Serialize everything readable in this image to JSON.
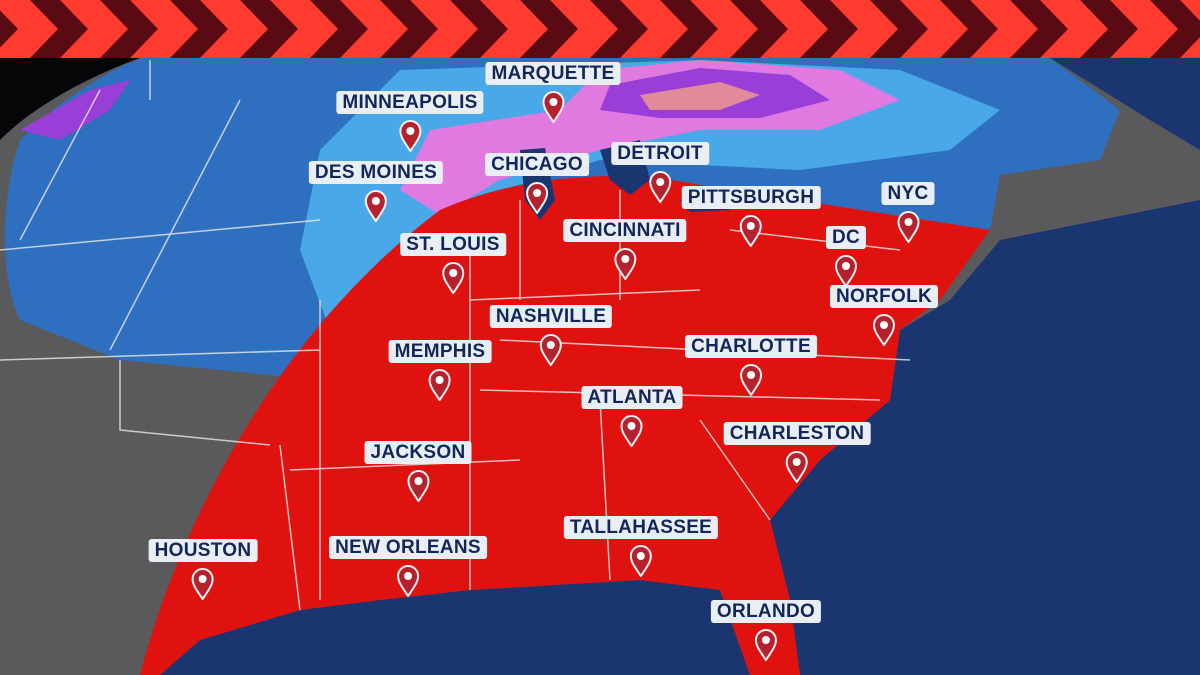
{
  "colors": {
    "banner_red": "#ff3b30",
    "banner_dark": "#5a0a12",
    "ocean": "#1b3570",
    "land": "#5a5a5c",
    "snow_light": "#48a8e8",
    "snow_dark": "#2f6fc0",
    "ice_pink": "#e07ae0",
    "ice_purple": "#9a3ed8",
    "rain_red": "#e0120f",
    "label_bg": "#e9eef4",
    "label_text": "#13265a",
    "pin": "#b5222e"
  },
  "cities": [
    {
      "name": "MARQUETTE",
      "icon": "map-pin-icon"
    },
    {
      "name": "MINNEAPOLIS",
      "icon": "map-pin-icon"
    },
    {
      "name": "DES MOINES",
      "icon": "map-pin-icon"
    },
    {
      "name": "CHICAGO",
      "icon": "map-pin-icon"
    },
    {
      "name": "DETROIT",
      "icon": "map-pin-icon"
    },
    {
      "name": "PITTSBURGH",
      "icon": "map-pin-icon"
    },
    {
      "name": "NYC",
      "icon": "map-pin-icon"
    },
    {
      "name": "ST. LOUIS",
      "icon": "map-pin-icon"
    },
    {
      "name": "CINCINNATI",
      "icon": "map-pin-icon"
    },
    {
      "name": "DC",
      "icon": "map-pin-icon"
    },
    {
      "name": "NORFOLK",
      "icon": "map-pin-icon"
    },
    {
      "name": "NASHVILLE",
      "icon": "map-pin-icon"
    },
    {
      "name": "MEMPHIS",
      "icon": "map-pin-icon"
    },
    {
      "name": "CHARLOTTE",
      "icon": "map-pin-icon"
    },
    {
      "name": "ATLANTA",
      "icon": "map-pin-icon"
    },
    {
      "name": "CHARLESTON",
      "icon": "map-pin-icon"
    },
    {
      "name": "JACKSON",
      "icon": "map-pin-icon"
    },
    {
      "name": "HOUSTON",
      "icon": "map-pin-icon"
    },
    {
      "name": "NEW ORLEANS",
      "icon": "map-pin-icon"
    },
    {
      "name": "TALLAHASSEE",
      "icon": "map-pin-icon"
    },
    {
      "name": "ORLANDO",
      "icon": "map-pin-icon"
    }
  ]
}
